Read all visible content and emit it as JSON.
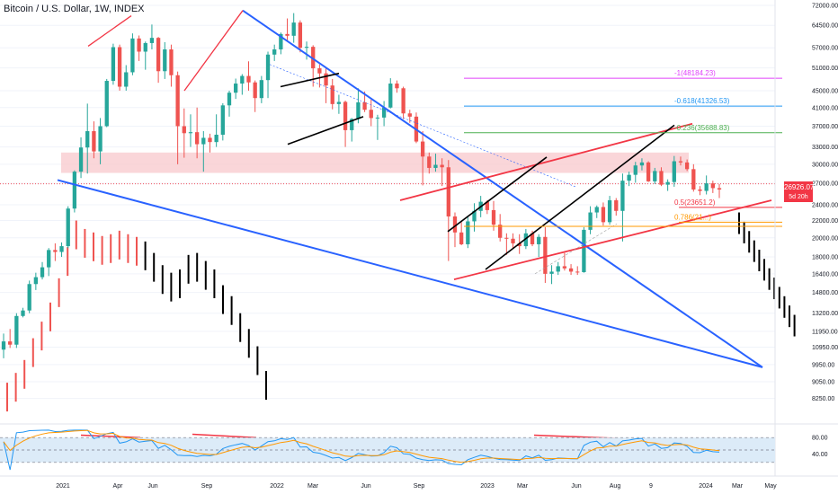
{
  "title": "Bitcoin / U.S. Dollar, 1W, INDEX",
  "price_tag": {
    "symbol": "BTCUSD",
    "value": "26926.07",
    "countdown": "5d 20h"
  },
  "colors": {
    "up": "#26a69a",
    "down": "#ef5350",
    "channel_blue": "#2962ff",
    "trend_red": "#f23645",
    "black": "#000000",
    "zone_pink": "#f8c8cc",
    "rsi_band": "#dcebf8"
  },
  "fib_levels": [
    {
      "label": "-1(48184.23)",
      "value": 48184.23,
      "color": "#e040fb"
    },
    {
      "label": "-0.618(41326.53)",
      "value": 41326.53,
      "color": "#2196f3"
    },
    {
      "label": "-0.236(35688.83)",
      "value": 35688.83,
      "color": "#4caf50"
    },
    {
      "label": "0.5(23651.2)",
      "value": 23651.2,
      "color": "#f23645"
    },
    {
      "label": "0.786(21...)",
      "value": 21800,
      "color": "#ff9800"
    }
  ],
  "chart_data": {
    "type": "candlestick",
    "yscale": "log",
    "ylim": [
      7800,
      72000
    ],
    "yticks": [
      "72000.00",
      "64500.00",
      "57000.00",
      "51000.00",
      "45000.00",
      "41000.00",
      "37000.00",
      "33000.00",
      "30000.00",
      "27000.00",
      "24000.00",
      "22000.00",
      "20000.00",
      "18000.00",
      "16400.00",
      "14800.00",
      "13200.00",
      "11950.00",
      "10950.00",
      "9950.00",
      "9050.00",
      "8250.00"
    ],
    "xticks": [
      "2021",
      "Apr",
      "Jun",
      "Sep",
      "2022",
      "Mar",
      "Jun",
      "Sep",
      "2023",
      "Mar",
      "Jun",
      "Aug",
      "9",
      "2024",
      "Mar",
      "May"
    ],
    "candles": [
      [
        10800,
        11800,
        10300,
        11300
      ],
      [
        11300,
        12100,
        10900,
        11100
      ],
      [
        11100,
        13200,
        10900,
        13000
      ],
      [
        13000,
        13600,
        12900,
        13400
      ],
      [
        13400,
        15800,
        13200,
        15500
      ],
      [
        15500,
        16500,
        15000,
        16100
      ],
      [
        16100,
        17500,
        15900,
        17000
      ],
      [
        17000,
        18900,
        16200,
        18700
      ],
      [
        18700,
        19400,
        17600,
        18500
      ],
      [
        18500,
        19500,
        18000,
        19100
      ],
      [
        19100,
        23800,
        18900,
        23500
      ],
      [
        23500,
        29000,
        23000,
        28800
      ],
      [
        28800,
        34800,
        27800,
        32900
      ],
      [
        32900,
        41900,
        28500,
        36000
      ],
      [
        36000,
        38000,
        31000,
        32200
      ],
      [
        32200,
        38700,
        30000,
        37000
      ],
      [
        37000,
        48000,
        36800,
        47500
      ],
      [
        47500,
        58300,
        46500,
        57200
      ],
      [
        57200,
        58000,
        45000,
        46000
      ],
      [
        46000,
        51800,
        45000,
        49800
      ],
      [
        49800,
        61700,
        49000,
        60000
      ],
      [
        60000,
        61000,
        53000,
        55800
      ],
      [
        55800,
        59000,
        50500,
        58500
      ],
      [
        58500,
        64800,
        56500,
        60200
      ],
      [
        60200,
        60500,
        47000,
        50100
      ],
      [
        50100,
        58800,
        48000,
        56500
      ],
      [
        56500,
        58000,
        46000,
        49000
      ],
      [
        49000,
        50000,
        30000,
        37000
      ],
      [
        37000,
        40800,
        31100,
        35600
      ],
      [
        35600,
        39500,
        33000,
        35800
      ],
      [
        35800,
        41000,
        31000,
        33500
      ],
      [
        33500,
        36000,
        28800,
        34700
      ],
      [
        34700,
        35500,
        32000,
        33900
      ],
      [
        33900,
        39500,
        33000,
        35300
      ],
      [
        35300,
        42000,
        34200,
        41500
      ],
      [
        41500,
        45000,
        39000,
        44500
      ],
      [
        44500,
        48100,
        43000,
        46800
      ],
      [
        46800,
        49300,
        44000,
        48800
      ],
      [
        48800,
        52900,
        45000,
        47100
      ],
      [
        47100,
        47600,
        40000,
        43200
      ],
      [
        43200,
        48800,
        42000,
        47700
      ],
      [
        47700,
        55800,
        43200,
        54900
      ],
      [
        54900,
        58000,
        53000,
        56500
      ],
      [
        56500,
        62000,
        55000,
        61500
      ],
      [
        61500,
        67000,
        59000,
        60900
      ],
      [
        60900,
        69000,
        58600,
        65500
      ],
      [
        65500,
        66300,
        55600,
        57000
      ],
      [
        57000,
        59000,
        53400,
        57300
      ],
      [
        57300,
        57800,
        46000,
        50900
      ],
      [
        50900,
        52000,
        45800,
        49500
      ],
      [
        49500,
        51200,
        42000,
        46300
      ],
      [
        46300,
        48000,
        40600,
        41800
      ],
      [
        41800,
        44000,
        39600,
        42300
      ],
      [
        42300,
        42600,
        33000,
        36200
      ],
      [
        36200,
        38700,
        34000,
        38500
      ],
      [
        38500,
        45600,
        37600,
        42200
      ],
      [
        42200,
        44800,
        40000,
        40500
      ],
      [
        40500,
        42800,
        37000,
        38700
      ],
      [
        38700,
        39400,
        34300,
        38800
      ],
      [
        38800,
        42500,
        37000,
        41000
      ],
      [
        41000,
        48200,
        40800,
        46800
      ],
      [
        46800,
        47600,
        44500,
        45600
      ],
      [
        45600,
        46000,
        38500,
        39700
      ],
      [
        39700,
        40500,
        37700,
        39000
      ],
      [
        39000,
        39900,
        33700,
        34000
      ],
      [
        34000,
        36000,
        26700,
        31300
      ],
      [
        31300,
        32000,
        28500,
        29400
      ],
      [
        29400,
        31800,
        28800,
        29900
      ],
      [
        29900,
        31000,
        26600,
        29500
      ],
      [
        29500,
        30700,
        17600,
        22500
      ],
      [
        22500,
        23000,
        19000,
        20600
      ],
      [
        20600,
        21800,
        19200,
        19300
      ],
      [
        19300,
        22500,
        18900,
        21900
      ],
      [
        21900,
        24200,
        20700,
        23200
      ],
      [
        23200,
        25200,
        22400,
        24400
      ],
      [
        24400,
        24600,
        22800,
        23300
      ],
      [
        23300,
        24500,
        20800,
        21500
      ],
      [
        21500,
        22800,
        19600,
        20000
      ],
      [
        20000,
        20500,
        18200,
        19900
      ],
      [
        19900,
        20500,
        18800,
        19400
      ],
      [
        19400,
        20400,
        18300,
        19100
      ],
      [
        19100,
        21000,
        18800,
        20500
      ],
      [
        20500,
        20800,
        19100,
        19300
      ],
      [
        19300,
        20400,
        18000,
        20100
      ],
      [
        20100,
        21200,
        15600,
        16400
      ],
      [
        16400,
        17200,
        15500,
        16600
      ],
      [
        16600,
        17500,
        16300,
        17100
      ],
      [
        17100,
        18400,
        16700,
        16900
      ],
      [
        16900,
        17300,
        16300,
        16600
      ],
      [
        16600,
        17100,
        16300,
        16550
      ],
      [
        16550,
        21200,
        16500,
        20900
      ],
      [
        20900,
        23800,
        20400,
        23000
      ],
      [
        23000,
        23900,
        22300,
        23700
      ],
      [
        23700,
        24300,
        21400,
        21800
      ],
      [
        21800,
        25200,
        21500,
        24600
      ],
      [
        24600,
        24900,
        22600,
        23200
      ],
      [
        23200,
        28500,
        19600,
        27400
      ],
      [
        27400,
        28800,
        26600,
        28300
      ],
      [
        28300,
        30400,
        27100,
        29800
      ],
      [
        29800,
        31000,
        29000,
        30300
      ],
      [
        30300,
        30500,
        27200,
        27300
      ],
      [
        27300,
        29400,
        26900,
        28900
      ],
      [
        28900,
        29500,
        26600,
        26800
      ],
      [
        26800,
        27600,
        25900,
        27200
      ],
      [
        27200,
        31400,
        26500,
        30500
      ],
      [
        30500,
        31300,
        29800,
        30300
      ],
      [
        30300,
        30800,
        28900,
        29200
      ],
      [
        29200,
        30000,
        25800,
        26100
      ],
      [
        26100,
        26600,
        25300,
        25900
      ],
      [
        25900,
        28200,
        25400,
        27000
      ],
      [
        27000,
        27400,
        25600,
        26300
      ],
      [
        26300,
        26900,
        24900,
        26100
      ]
    ],
    "shadow_series": [
      9000,
      9500,
      10200,
      11500,
      12600,
      14000,
      16000,
      19000,
      22000,
      21000,
      20600,
      20200,
      20400,
      20800,
      20400,
      20100,
      19600,
      18400,
      17200,
      16500,
      16800,
      18200,
      18400,
      17600,
      16800,
      15400,
      14500,
      13200,
      12100,
      11000,
      9600
    ],
    "rsi": {
      "ylim": [
        0,
        100
      ],
      "yticks": [
        "80.00",
        "40.00"
      ],
      "upper": 80,
      "lower": 20,
      "middle": 50
    }
  }
}
